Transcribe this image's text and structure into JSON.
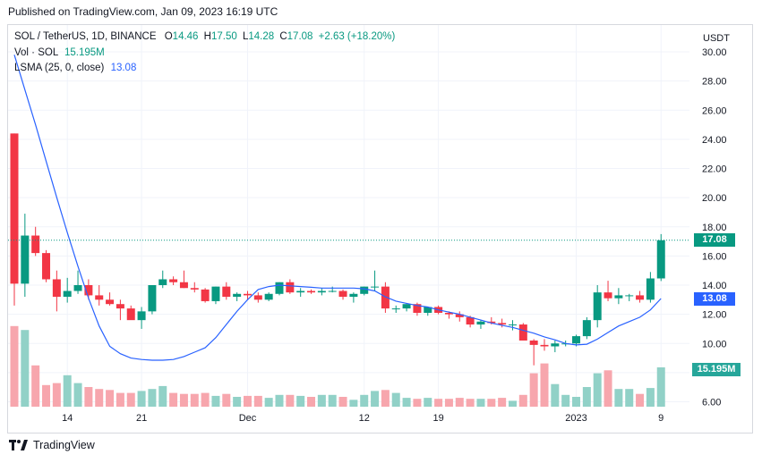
{
  "header": {
    "published": "Published on TradingView.com, Jan 09, 2023 16:19 UTC"
  },
  "legend": {
    "symbol": "SOL / TetherUS, 1D, BINANCE",
    "o_label": "O",
    "o": "14.46",
    "h_label": "H",
    "h": "17.50",
    "l_label": "L",
    "l": "14.28",
    "c_label": "C",
    "c": "17.08",
    "change": "+2.63 (+18.20%)",
    "vol_label": "Vol · SOL",
    "vol": "15.195M",
    "lsma_label": "LSMA (25, 0, close)",
    "lsma": "13.08"
  },
  "brand": {
    "name": "TradingView"
  },
  "tags": {
    "price": "17.08",
    "lsma": "13.08",
    "volume": "15.195M"
  },
  "colors": {
    "up": "#089981",
    "down": "#f23645",
    "up_vol": "#91d1c7",
    "down_vol": "#f7a6ad",
    "lsma": "#2962ff"
  },
  "chart_data": {
    "type": "candlestick",
    "currency": "USDT",
    "y_ticks": [
      "6.00",
      "8.00",
      "10.00",
      "12.00",
      "14.00",
      "16.00",
      "18.00",
      "20.00",
      "22.00",
      "24.00",
      "26.00",
      "28.00",
      "30.00"
    ],
    "ylim": [
      5.5,
      31.0
    ],
    "x_ticks": [
      {
        "label": "14",
        "date": "2022-11-14"
      },
      {
        "label": "21",
        "date": "2022-11-21"
      },
      {
        "label": "Dec",
        "date": "2022-12-01"
      },
      {
        "label": "12",
        "date": "2022-12-12"
      },
      {
        "label": "19",
        "date": "2022-12-19"
      },
      {
        "label": "2023",
        "date": "2023-01-01"
      },
      {
        "label": "9",
        "date": "2023-01-09"
      }
    ],
    "dates": [
      "2022-11-09",
      "2022-11-10",
      "2022-11-11",
      "2022-11-12",
      "2022-11-13",
      "2022-11-14",
      "2022-11-15",
      "2022-11-16",
      "2022-11-17",
      "2022-11-18",
      "2022-11-19",
      "2022-11-20",
      "2022-11-21",
      "2022-11-22",
      "2022-11-23",
      "2022-11-24",
      "2022-11-25",
      "2022-11-26",
      "2022-11-27",
      "2022-11-28",
      "2022-11-29",
      "2022-11-30",
      "2022-12-01",
      "2022-12-02",
      "2022-12-03",
      "2022-12-04",
      "2022-12-05",
      "2022-12-06",
      "2022-12-07",
      "2022-12-08",
      "2022-12-09",
      "2022-12-10",
      "2022-12-11",
      "2022-12-12",
      "2022-12-13",
      "2022-12-14",
      "2022-12-15",
      "2022-12-16",
      "2022-12-17",
      "2022-12-18",
      "2022-12-19",
      "2022-12-20",
      "2022-12-21",
      "2022-12-22",
      "2022-12-23",
      "2022-12-24",
      "2022-12-25",
      "2022-12-26",
      "2022-12-27",
      "2022-12-28",
      "2022-12-29",
      "2022-12-30",
      "2022-12-31",
      "2023-01-01",
      "2023-01-02",
      "2023-01-03",
      "2023-01-04",
      "2023-01-05",
      "2023-01-06",
      "2023-01-07",
      "2023-01-08",
      "2023-01-09"
    ],
    "open": [
      24.4,
      14.1,
      17.4,
      16.2,
      14.4,
      13.2,
      13.6,
      14.0,
      13.3,
      13.0,
      12.7,
      12.4,
      11.6,
      12.2,
      14.0,
      14.4,
      14.2,
      13.8,
      13.7,
      12.9,
      13.9,
      13.2,
      13.4,
      13.3,
      13.0,
      13.4,
      14.2,
      13.5,
      13.6,
      13.5,
      13.6,
      13.6,
      13.2,
      13.4,
      13.9,
      13.9,
      12.4,
      12.4,
      12.7,
      12.1,
      12.5,
      12.1,
      12.0,
      11.8,
      11.3,
      11.5,
      11.4,
      11.3,
      11.3,
      10.2,
      9.9,
      9.8,
      10.0,
      10.0,
      10.5,
      11.6,
      13.5,
      13.1,
      13.3,
      13.3,
      13.0,
      14.46
    ],
    "high": [
      24.4,
      18.9,
      18.0,
      16.4,
      15.0,
      14.5,
      15.0,
      14.4,
      14.0,
      13.5,
      13.0,
      12.6,
      12.5,
      14.0,
      15.0,
      14.6,
      15.0,
      14.2,
      13.8,
      13.9,
      14.2,
      13.5,
      13.6,
      13.5,
      13.5,
      14.2,
      14.4,
      13.8,
      13.7,
      13.8,
      13.9,
      13.7,
      13.5,
      13.9,
      15.0,
      14.2,
      12.6,
      12.7,
      12.8,
      12.5,
      12.6,
      12.2,
      12.2,
      11.9,
      11.6,
      11.8,
      11.7,
      11.6,
      11.4,
      10.3,
      10.3,
      10.2,
      10.2,
      10.6,
      11.8,
      14.0,
      14.3,
      13.8,
      13.4,
      13.6,
      14.9,
      17.5
    ],
    "low": [
      12.6,
      13.2,
      16.0,
      14.2,
      12.2,
      12.8,
      13.4,
      13.0,
      12.6,
      12.6,
      11.6,
      11.7,
      11.0,
      12.0,
      13.8,
      14.0,
      13.8,
      13.5,
      12.8,
      12.7,
      13.0,
      12.9,
      13.0,
      12.8,
      12.9,
      13.3,
      13.4,
      13.2,
      13.4,
      13.3,
      13.5,
      13.0,
      12.8,
      13.3,
      13.6,
      12.1,
      12.1,
      12.2,
      11.9,
      11.9,
      12.0,
      11.7,
      11.5,
      11.1,
      11.0,
      11.3,
      11.1,
      10.9,
      10.2,
      8.5,
      9.5,
      9.4,
      9.8,
      9.8,
      10.3,
      11.1,
      12.9,
      12.7,
      12.9,
      12.8,
      12.8,
      14.28
    ],
    "close": [
      14.1,
      17.4,
      16.2,
      14.4,
      13.2,
      13.6,
      14.0,
      13.3,
      13.0,
      12.7,
      12.4,
      11.6,
      12.2,
      14.0,
      14.4,
      14.2,
      13.8,
      13.7,
      12.9,
      13.9,
      13.2,
      13.4,
      13.3,
      13.0,
      13.4,
      14.2,
      13.5,
      13.6,
      13.5,
      13.6,
      13.6,
      13.2,
      13.4,
      13.9,
      13.9,
      12.4,
      12.4,
      12.7,
      12.1,
      12.5,
      12.1,
      12.0,
      11.8,
      11.3,
      11.5,
      11.4,
      11.3,
      11.3,
      10.2,
      9.9,
      9.8,
      10.0,
      10.0,
      10.5,
      11.6,
      13.5,
      13.1,
      13.3,
      13.3,
      13.0,
      14.46,
      17.08
    ],
    "volume_rel": [
      0.82,
      0.78,
      0.42,
      0.22,
      0.24,
      0.32,
      0.24,
      0.2,
      0.18,
      0.17,
      0.14,
      0.14,
      0.16,
      0.18,
      0.21,
      0.14,
      0.13,
      0.13,
      0.14,
      0.11,
      0.13,
      0.1,
      0.11,
      0.11,
      0.09,
      0.12,
      0.12,
      0.11,
      0.1,
      0.12,
      0.12,
      0.1,
      0.07,
      0.12,
      0.16,
      0.17,
      0.14,
      0.09,
      0.08,
      0.09,
      0.08,
      0.08,
      0.09,
      0.08,
      0.08,
      0.08,
      0.09,
      0.06,
      0.12,
      0.34,
      0.44,
      0.23,
      0.12,
      0.1,
      0.2,
      0.34,
      0.37,
      0.18,
      0.18,
      0.13,
      0.19,
      0.4
    ],
    "lsma": [
      29.8,
      27.4,
      25.0,
      22.5,
      20.0,
      17.6,
      15.3,
      13.1,
      11.2,
      9.8,
      9.3,
      9.0,
      8.9,
      8.85,
      8.85,
      8.9,
      9.1,
      9.4,
      9.7,
      10.4,
      11.3,
      12.2,
      13.0,
      13.7,
      13.9,
      14.0,
      13.95,
      13.9,
      13.85,
      13.8,
      13.8,
      13.8,
      13.8,
      13.75,
      13.6,
      13.2,
      12.9,
      12.75,
      12.6,
      12.5,
      12.3,
      12.15,
      12.0,
      11.8,
      11.6,
      11.4,
      11.25,
      11.1,
      10.9,
      10.7,
      10.45,
      10.25,
      10.0,
      9.9,
      9.95,
      10.3,
      10.75,
      11.2,
      11.5,
      11.8,
      12.3,
      13.08
    ]
  }
}
